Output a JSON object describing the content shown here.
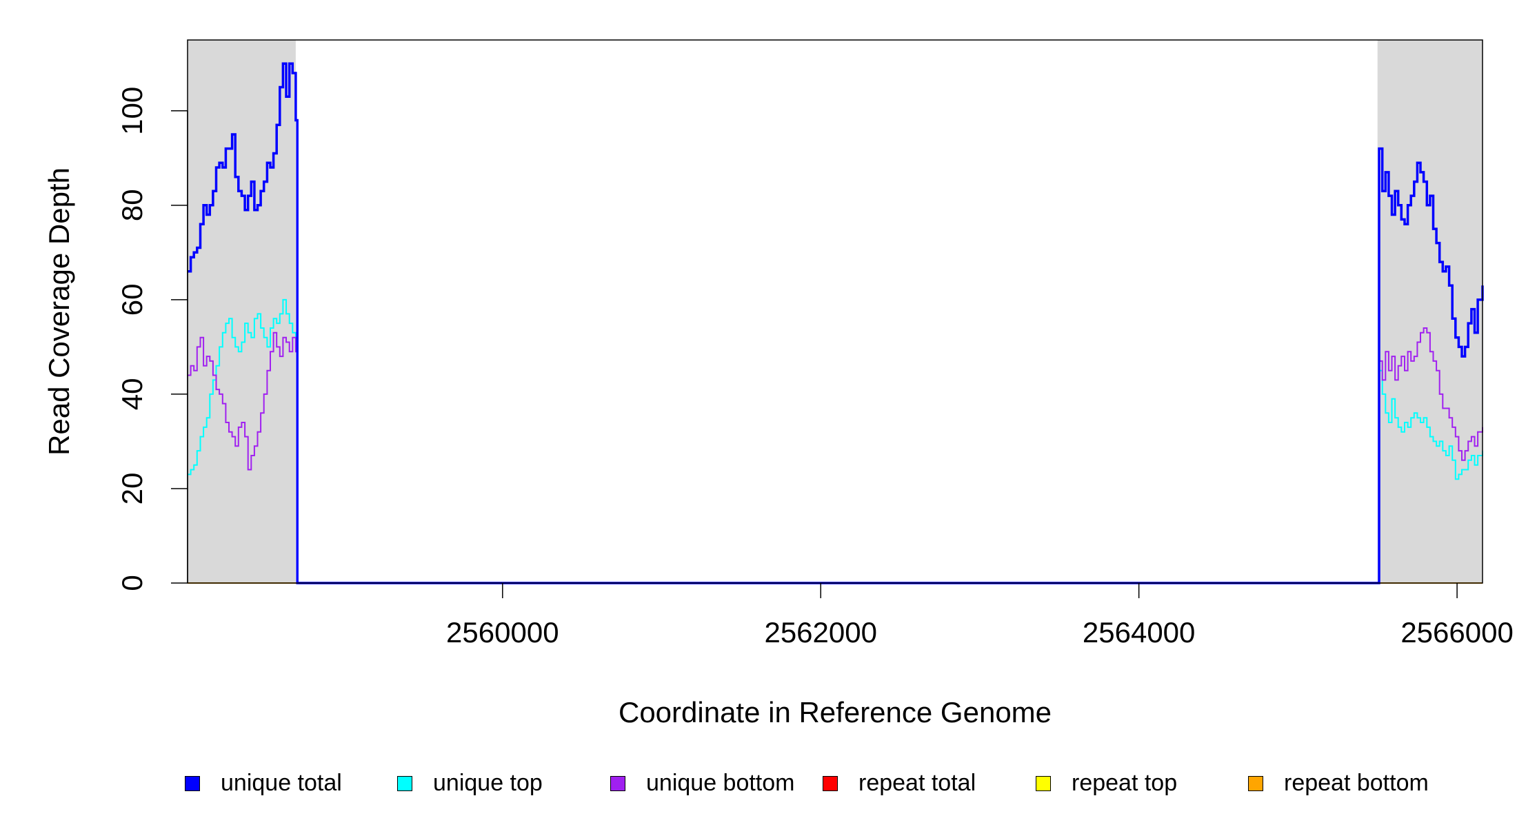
{
  "chart_data": {
    "type": "line",
    "title": "",
    "xlabel": "Coordinate in Reference Genome",
    "ylabel": "Read Coverage Depth",
    "xlim": [
      2558020,
      2566160
    ],
    "ylim": [
      0,
      115
    ],
    "x_ticks": [
      2560000,
      2562000,
      2564000,
      2566000
    ],
    "x_tick_labels": [
      "2560000",
      "2562000",
      "2564000",
      "2566000"
    ],
    "y_ticks": [
      0,
      20,
      40,
      60,
      80,
      100
    ],
    "y_tick_labels": [
      "0",
      "20",
      "40",
      "60",
      "80",
      "100"
    ],
    "shaded_regions": [
      [
        2558020,
        2558700
      ],
      [
        2565500,
        2566160
      ]
    ],
    "shading_color": "#d9d9d9",
    "grid": false,
    "legend_position": "bottom",
    "series": [
      {
        "name": "unique total",
        "color": "#0000ff",
        "points": [
          [
            2558020,
            66
          ],
          [
            2558040,
            69
          ],
          [
            2558060,
            70
          ],
          [
            2558080,
            71
          ],
          [
            2558100,
            76
          ],
          [
            2558120,
            80
          ],
          [
            2558140,
            78
          ],
          [
            2558160,
            80
          ],
          [
            2558180,
            83
          ],
          [
            2558200,
            88
          ],
          [
            2558220,
            89
          ],
          [
            2558240,
            88
          ],
          [
            2558260,
            92
          ],
          [
            2558280,
            92
          ],
          [
            2558300,
            95
          ],
          [
            2558320,
            86
          ],
          [
            2558340,
            83
          ],
          [
            2558360,
            82
          ],
          [
            2558380,
            79
          ],
          [
            2558400,
            82
          ],
          [
            2558420,
            85
          ],
          [
            2558440,
            79
          ],
          [
            2558460,
            80
          ],
          [
            2558480,
            83
          ],
          [
            2558500,
            85
          ],
          [
            2558520,
            89
          ],
          [
            2558540,
            88
          ],
          [
            2558560,
            91
          ],
          [
            2558580,
            97
          ],
          [
            2558600,
            105
          ],
          [
            2558620,
            110
          ],
          [
            2558640,
            103
          ],
          [
            2558660,
            110
          ],
          [
            2558680,
            108
          ],
          [
            2558700,
            98
          ],
          [
            2558710,
            0
          ],
          [
            2565500,
            0
          ],
          [
            2565510,
            92
          ],
          [
            2565530,
            83
          ],
          [
            2565550,
            87
          ],
          [
            2565570,
            82
          ],
          [
            2565590,
            78
          ],
          [
            2565610,
            83
          ],
          [
            2565630,
            80
          ],
          [
            2565650,
            77
          ],
          [
            2565670,
            76
          ],
          [
            2565690,
            80
          ],
          [
            2565710,
            82
          ],
          [
            2565730,
            85
          ],
          [
            2565750,
            89
          ],
          [
            2565770,
            87
          ],
          [
            2565790,
            85
          ],
          [
            2565810,
            80
          ],
          [
            2565830,
            82
          ],
          [
            2565850,
            75
          ],
          [
            2565870,
            72
          ],
          [
            2565890,
            68
          ],
          [
            2565910,
            66
          ],
          [
            2565930,
            67
          ],
          [
            2565950,
            63
          ],
          [
            2565970,
            56
          ],
          [
            2565990,
            52
          ],
          [
            2566010,
            50
          ],
          [
            2566030,
            48
          ],
          [
            2566050,
            50
          ],
          [
            2566070,
            55
          ],
          [
            2566090,
            58
          ],
          [
            2566110,
            53
          ],
          [
            2566130,
            60
          ],
          [
            2566160,
            63
          ]
        ]
      },
      {
        "name": "unique top",
        "color": "#00ffff",
        "points": [
          [
            2558020,
            23
          ],
          [
            2558040,
            24
          ],
          [
            2558060,
            25
          ],
          [
            2558080,
            28
          ],
          [
            2558100,
            31
          ],
          [
            2558120,
            33
          ],
          [
            2558140,
            35
          ],
          [
            2558160,
            40
          ],
          [
            2558180,
            43
          ],
          [
            2558200,
            46
          ],
          [
            2558220,
            50
          ],
          [
            2558240,
            53
          ],
          [
            2558260,
            55
          ],
          [
            2558280,
            56
          ],
          [
            2558300,
            52
          ],
          [
            2558320,
            50
          ],
          [
            2558340,
            49
          ],
          [
            2558360,
            51
          ],
          [
            2558380,
            55
          ],
          [
            2558400,
            53
          ],
          [
            2558420,
            52
          ],
          [
            2558440,
            56
          ],
          [
            2558460,
            57
          ],
          [
            2558480,
            54
          ],
          [
            2558500,
            52
          ],
          [
            2558520,
            50
          ],
          [
            2558540,
            54
          ],
          [
            2558560,
            56
          ],
          [
            2558580,
            55
          ],
          [
            2558600,
            57
          ],
          [
            2558620,
            60
          ],
          [
            2558640,
            57
          ],
          [
            2558660,
            55
          ],
          [
            2558680,
            53
          ],
          [
            2558700,
            50
          ],
          [
            2558710,
            0
          ],
          [
            2565500,
            0
          ],
          [
            2565510,
            45
          ],
          [
            2565530,
            40
          ],
          [
            2565550,
            36
          ],
          [
            2565570,
            34
          ],
          [
            2565590,
            39
          ],
          [
            2565610,
            35
          ],
          [
            2565630,
            33
          ],
          [
            2565650,
            32
          ],
          [
            2565670,
            34
          ],
          [
            2565690,
            33
          ],
          [
            2565710,
            35
          ],
          [
            2565730,
            36
          ],
          [
            2565750,
            35
          ],
          [
            2565770,
            34
          ],
          [
            2565790,
            35
          ],
          [
            2565810,
            33
          ],
          [
            2565830,
            31
          ],
          [
            2565850,
            30
          ],
          [
            2565870,
            29
          ],
          [
            2565890,
            30
          ],
          [
            2565910,
            28
          ],
          [
            2565930,
            27
          ],
          [
            2565950,
            29
          ],
          [
            2565970,
            26
          ],
          [
            2565990,
            22
          ],
          [
            2566010,
            23
          ],
          [
            2566030,
            24
          ],
          [
            2566050,
            24
          ],
          [
            2566070,
            26
          ],
          [
            2566090,
            27
          ],
          [
            2566110,
            25
          ],
          [
            2566130,
            27
          ],
          [
            2566160,
            28
          ]
        ]
      },
      {
        "name": "unique bottom",
        "color": "#a020f0",
        "points": [
          [
            2558020,
            44
          ],
          [
            2558040,
            46
          ],
          [
            2558060,
            45
          ],
          [
            2558080,
            50
          ],
          [
            2558100,
            52
          ],
          [
            2558120,
            46
          ],
          [
            2558140,
            48
          ],
          [
            2558160,
            47
          ],
          [
            2558180,
            44
          ],
          [
            2558200,
            41
          ],
          [
            2558220,
            40
          ],
          [
            2558240,
            38
          ],
          [
            2558260,
            34
          ],
          [
            2558280,
            32
          ],
          [
            2558300,
            31
          ],
          [
            2558320,
            29
          ],
          [
            2558340,
            33
          ],
          [
            2558360,
            34
          ],
          [
            2558380,
            31
          ],
          [
            2558400,
            24
          ],
          [
            2558420,
            27
          ],
          [
            2558440,
            29
          ],
          [
            2558460,
            32
          ],
          [
            2558480,
            36
          ],
          [
            2558500,
            40
          ],
          [
            2558520,
            45
          ],
          [
            2558540,
            49
          ],
          [
            2558560,
            53
          ],
          [
            2558580,
            50
          ],
          [
            2558600,
            48
          ],
          [
            2558620,
            52
          ],
          [
            2558640,
            51
          ],
          [
            2558660,
            49
          ],
          [
            2558680,
            52
          ],
          [
            2558700,
            49
          ],
          [
            2558710,
            0
          ],
          [
            2565500,
            0
          ],
          [
            2565510,
            47
          ],
          [
            2565530,
            43
          ],
          [
            2565550,
            49
          ],
          [
            2565570,
            45
          ],
          [
            2565590,
            48
          ],
          [
            2565610,
            43
          ],
          [
            2565630,
            46
          ],
          [
            2565650,
            48
          ],
          [
            2565670,
            45
          ],
          [
            2565690,
            49
          ],
          [
            2565710,
            47
          ],
          [
            2565730,
            48
          ],
          [
            2565750,
            51
          ],
          [
            2565770,
            53
          ],
          [
            2565790,
            54
          ],
          [
            2565810,
            53
          ],
          [
            2565830,
            49
          ],
          [
            2565850,
            47
          ],
          [
            2565870,
            45
          ],
          [
            2565890,
            40
          ],
          [
            2565910,
            37
          ],
          [
            2565930,
            37
          ],
          [
            2565950,
            35
          ],
          [
            2565970,
            33
          ],
          [
            2565990,
            31
          ],
          [
            2566010,
            28
          ],
          [
            2566030,
            26
          ],
          [
            2566050,
            28
          ],
          [
            2566070,
            30
          ],
          [
            2566090,
            31
          ],
          [
            2566110,
            29
          ],
          [
            2566130,
            32
          ],
          [
            2566160,
            33
          ]
        ]
      },
      {
        "name": "repeat total",
        "color": "#ff0000",
        "points": [
          [
            2558020,
            0
          ],
          [
            2566160,
            0
          ]
        ]
      },
      {
        "name": "repeat top",
        "color": "#ffff00",
        "points": [
          [
            2558020,
            0
          ],
          [
            2566160,
            0
          ]
        ]
      },
      {
        "name": "repeat bottom",
        "color": "#ffa500",
        "points": [
          [
            2558020,
            0
          ],
          [
            2566160,
            0
          ]
        ]
      }
    ]
  },
  "legend": {
    "items": [
      {
        "label": "unique total",
        "color": "#0000ff"
      },
      {
        "label": "unique top",
        "color": "#00ffff"
      },
      {
        "label": "unique bottom",
        "color": "#a020f0"
      },
      {
        "label": "repeat total",
        "color": "#ff0000"
      },
      {
        "label": "repeat top",
        "color": "#ffff00"
      },
      {
        "label": "repeat bottom",
        "color": "#ffa500"
      }
    ]
  }
}
